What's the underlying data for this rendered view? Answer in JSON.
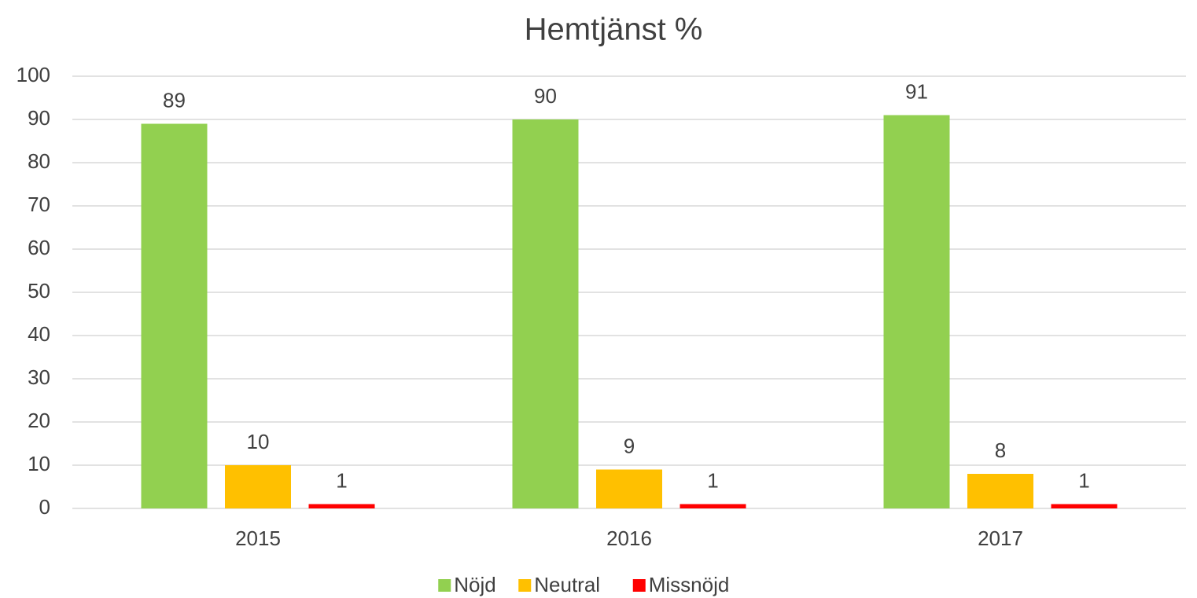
{
  "chart_data": {
    "type": "bar",
    "title": "Hemtjänst %",
    "categories": [
      "2015",
      "2016",
      "2017"
    ],
    "series": [
      {
        "name": "Nöjd",
        "color": "#92d050",
        "values": [
          89,
          90,
          91
        ]
      },
      {
        "name": "Neutral",
        "color": "#ffc000",
        "values": [
          10,
          9,
          8
        ]
      },
      {
        "name": "Missnöjd",
        "color": "#ff0000",
        "values": [
          1,
          1,
          1
        ]
      }
    ],
    "ylim": [
      0,
      100
    ],
    "yticks": [
      0,
      10,
      20,
      30,
      40,
      50,
      60,
      70,
      80,
      90,
      100
    ],
    "grid": true,
    "legend": "bottom"
  }
}
